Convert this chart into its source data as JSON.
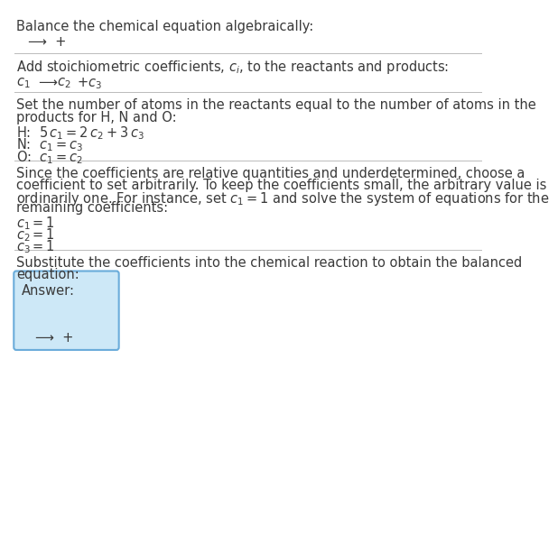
{
  "bg_color": "#ffffff",
  "text_color": "#3a3a3a",
  "title": "Balance the chemical equation algebraically:",
  "arrow": "⟶",
  "section2_header": "Add stoichiometric coefficients, $c_i$, to the reactants and products:",
  "section3_header_1": "Set the number of atoms in the reactants equal to the number of atoms in the",
  "section3_header_2": "products for H, N and O:",
  "section4_header_1": "Since the coefficients are relative quantities and underdetermined, choose a",
  "section4_header_2": "coefficient to set arbitrarily. To keep the coefficients small, the arbitrary value is",
  "section4_header_3": "ordinarily one. For instance, set $c_1 = 1$ and solve the system of equations for the",
  "section4_header_4": "remaining coefficients:",
  "section5_header_1": "Substitute the coefficients into the chemical reaction to obtain the balanced",
  "section5_header_2": "equation:",
  "answer_label": "Answer:",
  "answer_box_color": "#cde8f7",
  "answer_box_border": "#6aacda",
  "divider_color": "#bbbbbb",
  "fs": 10.5,
  "fs_small": 10.5
}
